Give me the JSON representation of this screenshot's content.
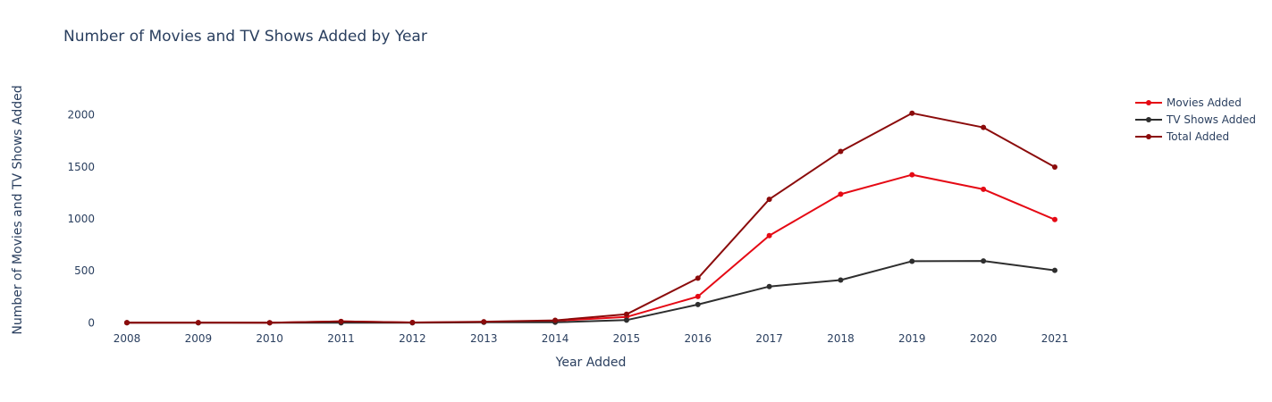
{
  "chart_data": {
    "type": "line",
    "title": "Number of Movies and TV Shows Added by Year",
    "xlabel": "Year Added",
    "ylabel": "Number of Movies and TV Shows Added",
    "x": [
      "2008",
      "2009",
      "2010",
      "2011",
      "2012",
      "2013",
      "2014",
      "2015",
      "2016",
      "2017",
      "2018",
      "2019",
      "2020",
      "2021"
    ],
    "ylim": [
      -40,
      2280
    ],
    "yticks": [
      0,
      500,
      1000,
      1500,
      2000
    ],
    "grid": false,
    "legend_position": "top-right",
    "series": [
      {
        "name": "Movies Added",
        "color": "#e50914",
        "values": [
          1,
          2,
          1,
          13,
          3,
          6,
          19,
          56,
          253,
          839,
          1237,
          1424,
          1284,
          993
        ]
      },
      {
        "name": "TV Shows Added",
        "color": "#2e2e2e",
        "values": [
          1,
          0,
          0,
          0,
          0,
          5,
          5,
          26,
          176,
          349,
          411,
          592,
          595,
          505
        ]
      },
      {
        "name": "Total Added",
        "color": "#8b0b0b",
        "values": [
          2,
          2,
          1,
          13,
          3,
          11,
          24,
          82,
          429,
          1188,
          1648,
          2016,
          1879,
          1498
        ]
      }
    ]
  }
}
